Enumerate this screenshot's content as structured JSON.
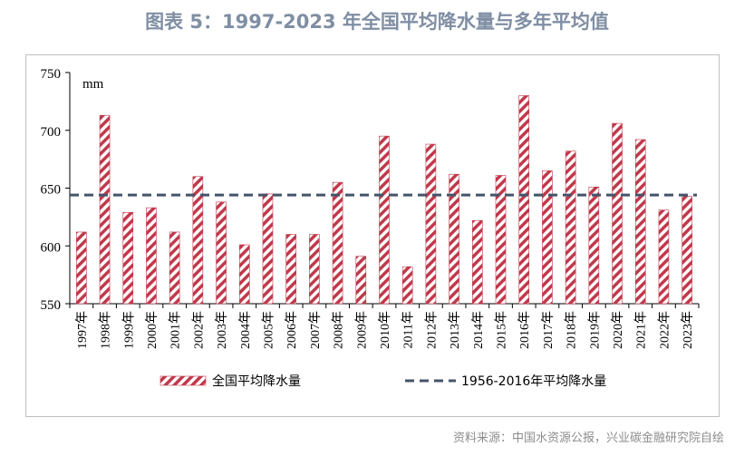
{
  "header": {
    "title": "图表 5：1997-2023 年全国平均降水量与多年平均值"
  },
  "footer": {
    "source": "资料来源：中国水资源公报，兴业碳金融研究院自绘"
  },
  "colors": {
    "bar_stripe": "#c0394b",
    "avg_line": "#44546a",
    "title": "#7f8ea3"
  },
  "chart_data": {
    "type": "bar",
    "title": "图表 5：1997-2023 年全国平均降水量与多年平均值",
    "unit_label": "mm",
    "xlabel": "",
    "ylabel": "",
    "ylim": [
      550,
      750
    ],
    "yticks": [
      550,
      600,
      650,
      700,
      750
    ],
    "grid": false,
    "legend_position": "bottom",
    "categories": [
      "1997年",
      "1998年",
      "1999年",
      "2000年",
      "2001年",
      "2002年",
      "2003年",
      "2004年",
      "2005年",
      "2006年",
      "2007年",
      "2008年",
      "2009年",
      "2010年",
      "2011年",
      "2012年",
      "2013年",
      "2014年",
      "2015年",
      "2016年",
      "2017年",
      "2018年",
      "2019年",
      "2020年",
      "2021年",
      "2022年",
      "2023年"
    ],
    "series": [
      {
        "name": "全国平均降水量",
        "type": "bar",
        "pattern": "diagonal-stripes",
        "values": [
          612,
          713,
          629,
          633,
          612,
          660,
          638,
          601,
          645,
          610,
          610,
          655,
          591,
          695,
          582,
          688,
          662,
          622,
          661,
          730,
          665,
          682,
          651,
          706,
          692,
          631,
          643
        ]
      },
      {
        "name": "1956-2016年平均降水量",
        "type": "line",
        "style": "dashed",
        "value": 644
      }
    ]
  }
}
